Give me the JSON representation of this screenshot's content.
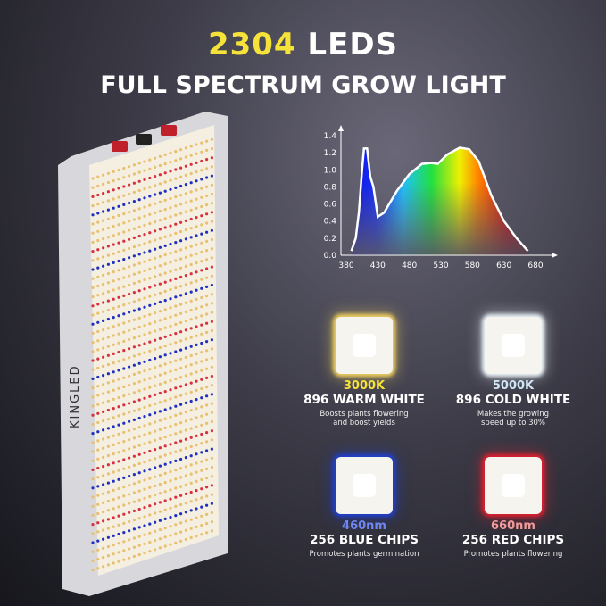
{
  "headline": {
    "count": "2304",
    "rest": " LEDS",
    "subtitle": "FULL SPECTRUM GROW LIGHT"
  },
  "brand": "KINGLED",
  "chart_data": {
    "type": "area",
    "xlabel": "",
    "ylabel": "",
    "xlim": [
      380,
      680
    ],
    "ylim": [
      0,
      1.4
    ],
    "x_ticks": [
      "380",
      "430",
      "480",
      "530",
      "580",
      "630",
      "680"
    ],
    "y_ticks": [
      "0.0",
      "0.2",
      "0.4",
      "0.6",
      "0.8",
      "1.0",
      "1.2",
      "1.4"
    ],
    "x": [
      388,
      395,
      400,
      405,
      408,
      413,
      418,
      423,
      430,
      440,
      460,
      480,
      500,
      515,
      525,
      540,
      560,
      575,
      590,
      610,
      630,
      650,
      668
    ],
    "y": [
      0.05,
      0.2,
      0.5,
      1.0,
      1.25,
      1.25,
      0.92,
      0.8,
      0.45,
      0.5,
      0.75,
      0.95,
      1.07,
      1.08,
      1.07,
      1.18,
      1.26,
      1.24,
      1.1,
      0.7,
      0.4,
      0.2,
      0.05
    ]
  },
  "cards": [
    {
      "value": "3000K",
      "title": "896 WARM WHITE",
      "desc": [
        "Boosts plants flowering",
        "and boost yields"
      ],
      "color": "#f6e33a",
      "glow": "#f0d060"
    },
    {
      "value": "5000K",
      "title": "896 COLD WHITE",
      "desc": [
        "Makes the growing",
        "speed up to 30%"
      ],
      "color": "#cfe6f5",
      "glow": "#e8f0f5"
    },
    {
      "value": "460nm",
      "title": "256 BLUE CHIPS",
      "desc": [
        "Promotes plants germination"
      ],
      "color": "#6f86f0",
      "glow": "#2040d0"
    },
    {
      "value": "660nm",
      "title": "256 RED CHIPS",
      "desc": [
        "Promotes plants flowering"
      ],
      "color": "#f29a9a",
      "glow": "#e02030"
    }
  ]
}
